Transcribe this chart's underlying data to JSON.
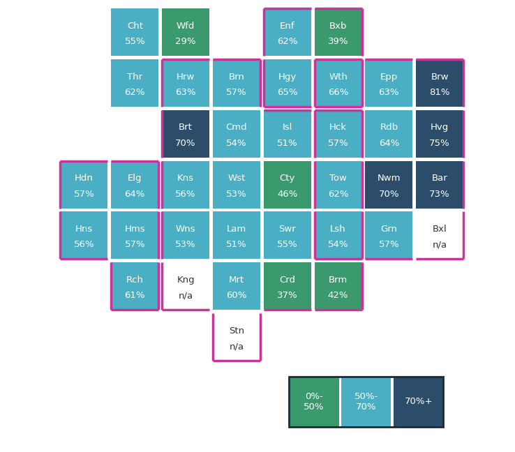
{
  "cells": [
    {
      "row": 0,
      "col": 1,
      "label": "Cht",
      "value": "55%",
      "pct": 55
    },
    {
      "row": 0,
      "col": 2,
      "label": "Wfd",
      "value": "29%",
      "pct": 29
    },
    {
      "row": 0,
      "col": 4,
      "label": "Enf",
      "value": "62%",
      "pct": 62
    },
    {
      "row": 0,
      "col": 5,
      "label": "Bxb",
      "value": "39%",
      "pct": 39
    },
    {
      "row": 1,
      "col": 1,
      "label": "Thr",
      "value": "62%",
      "pct": 62
    },
    {
      "row": 1,
      "col": 2,
      "label": "Hrw",
      "value": "63%",
      "pct": 63
    },
    {
      "row": 1,
      "col": 3,
      "label": "Brn",
      "value": "57%",
      "pct": 57
    },
    {
      "row": 1,
      "col": 4,
      "label": "Hgy",
      "value": "65%",
      "pct": 65
    },
    {
      "row": 1,
      "col": 5,
      "label": "Wth",
      "value": "66%",
      "pct": 66
    },
    {
      "row": 1,
      "col": 6,
      "label": "Epp",
      "value": "63%",
      "pct": 63
    },
    {
      "row": 1,
      "col": 7,
      "label": "Brw",
      "value": "81%",
      "pct": 81
    },
    {
      "row": 2,
      "col": 2,
      "label": "Brt",
      "value": "70%",
      "pct": 70
    },
    {
      "row": 2,
      "col": 3,
      "label": "Cmd",
      "value": "54%",
      "pct": 54
    },
    {
      "row": 2,
      "col": 4,
      "label": "Isl",
      "value": "51%",
      "pct": 51
    },
    {
      "row": 2,
      "col": 5,
      "label": "Hck",
      "value": "57%",
      "pct": 57
    },
    {
      "row": 2,
      "col": 6,
      "label": "Rdb",
      "value": "64%",
      "pct": 64
    },
    {
      "row": 2,
      "col": 7,
      "label": "Hvg",
      "value": "75%",
      "pct": 75
    },
    {
      "row": 3,
      "col": 0,
      "label": "Hdn",
      "value": "57%",
      "pct": 57
    },
    {
      "row": 3,
      "col": 1,
      "label": "Elg",
      "value": "64%",
      "pct": 64
    },
    {
      "row": 3,
      "col": 2,
      "label": "Kns",
      "value": "56%",
      "pct": 56
    },
    {
      "row": 3,
      "col": 3,
      "label": "Wst",
      "value": "53%",
      "pct": 53
    },
    {
      "row": 3,
      "col": 4,
      "label": "Cty",
      "value": "46%",
      "pct": 46
    },
    {
      "row": 3,
      "col": 5,
      "label": "Tow",
      "value": "62%",
      "pct": 62
    },
    {
      "row": 3,
      "col": 6,
      "label": "Nwm",
      "value": "70%",
      "pct": 70
    },
    {
      "row": 3,
      "col": 7,
      "label": "Bar",
      "value": "73%",
      "pct": 73
    },
    {
      "row": 4,
      "col": 0,
      "label": "Hns",
      "value": "56%",
      "pct": 56
    },
    {
      "row": 4,
      "col": 1,
      "label": "Hms",
      "value": "57%",
      "pct": 57
    },
    {
      "row": 4,
      "col": 2,
      "label": "Wns",
      "value": "53%",
      "pct": 53
    },
    {
      "row": 4,
      "col": 3,
      "label": "Lam",
      "value": "51%",
      "pct": 51
    },
    {
      "row": 4,
      "col": 4,
      "label": "Swr",
      "value": "55%",
      "pct": 55
    },
    {
      "row": 4,
      "col": 5,
      "label": "Lsh",
      "value": "54%",
      "pct": 54
    },
    {
      "row": 4,
      "col": 6,
      "label": "Grn",
      "value": "57%",
      "pct": 57
    },
    {
      "row": 4,
      "col": 7,
      "label": "Bxl",
      "value": "n/a",
      "pct": -1
    },
    {
      "row": 5,
      "col": 1,
      "label": "Rch",
      "value": "61%",
      "pct": 61
    },
    {
      "row": 5,
      "col": 2,
      "label": "Kng",
      "value": "n/a",
      "pct": -1
    },
    {
      "row": 5,
      "col": 3,
      "label": "Mrt",
      "value": "60%",
      "pct": 60
    },
    {
      "row": 5,
      "col": 4,
      "label": "Crd",
      "value": "37%",
      "pct": 37
    },
    {
      "row": 5,
      "col": 5,
      "label": "Brm",
      "value": "42%",
      "pct": 42
    },
    {
      "row": 6,
      "col": 3,
      "label": "Stn",
      "value": "n/a",
      "pct": -1
    }
  ],
  "color_green": "#3a9a6e",
  "color_teal": "#4aafc4",
  "color_dark": "#2b4d6a",
  "color_white": "#ffffff",
  "color_border_pink": "#cc3399",
  "color_border_dark": "#1a2a3a",
  "legend_items": [
    {
      "label": "0%-\n50%",
      "color": "#3a9a6e"
    },
    {
      "label": "50%-\n70%",
      "color": "#4aafc4"
    },
    {
      "label": "70%+",
      "color": "#2b4d6a"
    }
  ],
  "pink_groups": [
    [
      [
        0,
        4
      ],
      [
        0,
        5
      ],
      [
        1,
        4
      ],
      [
        1,
        5
      ]
    ],
    [
      [
        1,
        2
      ],
      [
        1,
        3
      ],
      [
        2,
        2
      ],
      [
        2,
        3
      ],
      [
        2,
        4
      ],
      [
        2,
        5
      ],
      [
        3,
        2
      ],
      [
        3,
        3
      ],
      [
        3,
        4
      ],
      [
        3,
        5
      ],
      [
        4,
        2
      ],
      [
        4,
        3
      ],
      [
        4,
        4
      ],
      [
        4,
        5
      ],
      [
        5,
        2
      ],
      [
        5,
        3
      ],
      [
        5,
        4
      ],
      [
        5,
        5
      ],
      [
        6,
        3
      ]
    ],
    [
      [
        3,
        0
      ],
      [
        3,
        1
      ],
      [
        4,
        0
      ],
      [
        4,
        1
      ],
      [
        5,
        1
      ]
    ],
    [
      [
        1,
        5
      ],
      [
        1,
        6
      ],
      [
        1,
        7
      ],
      [
        2,
        6
      ],
      [
        2,
        7
      ],
      [
        3,
        6
      ],
      [
        3,
        7
      ],
      [
        4,
        6
      ],
      [
        4,
        7
      ]
    ]
  ]
}
